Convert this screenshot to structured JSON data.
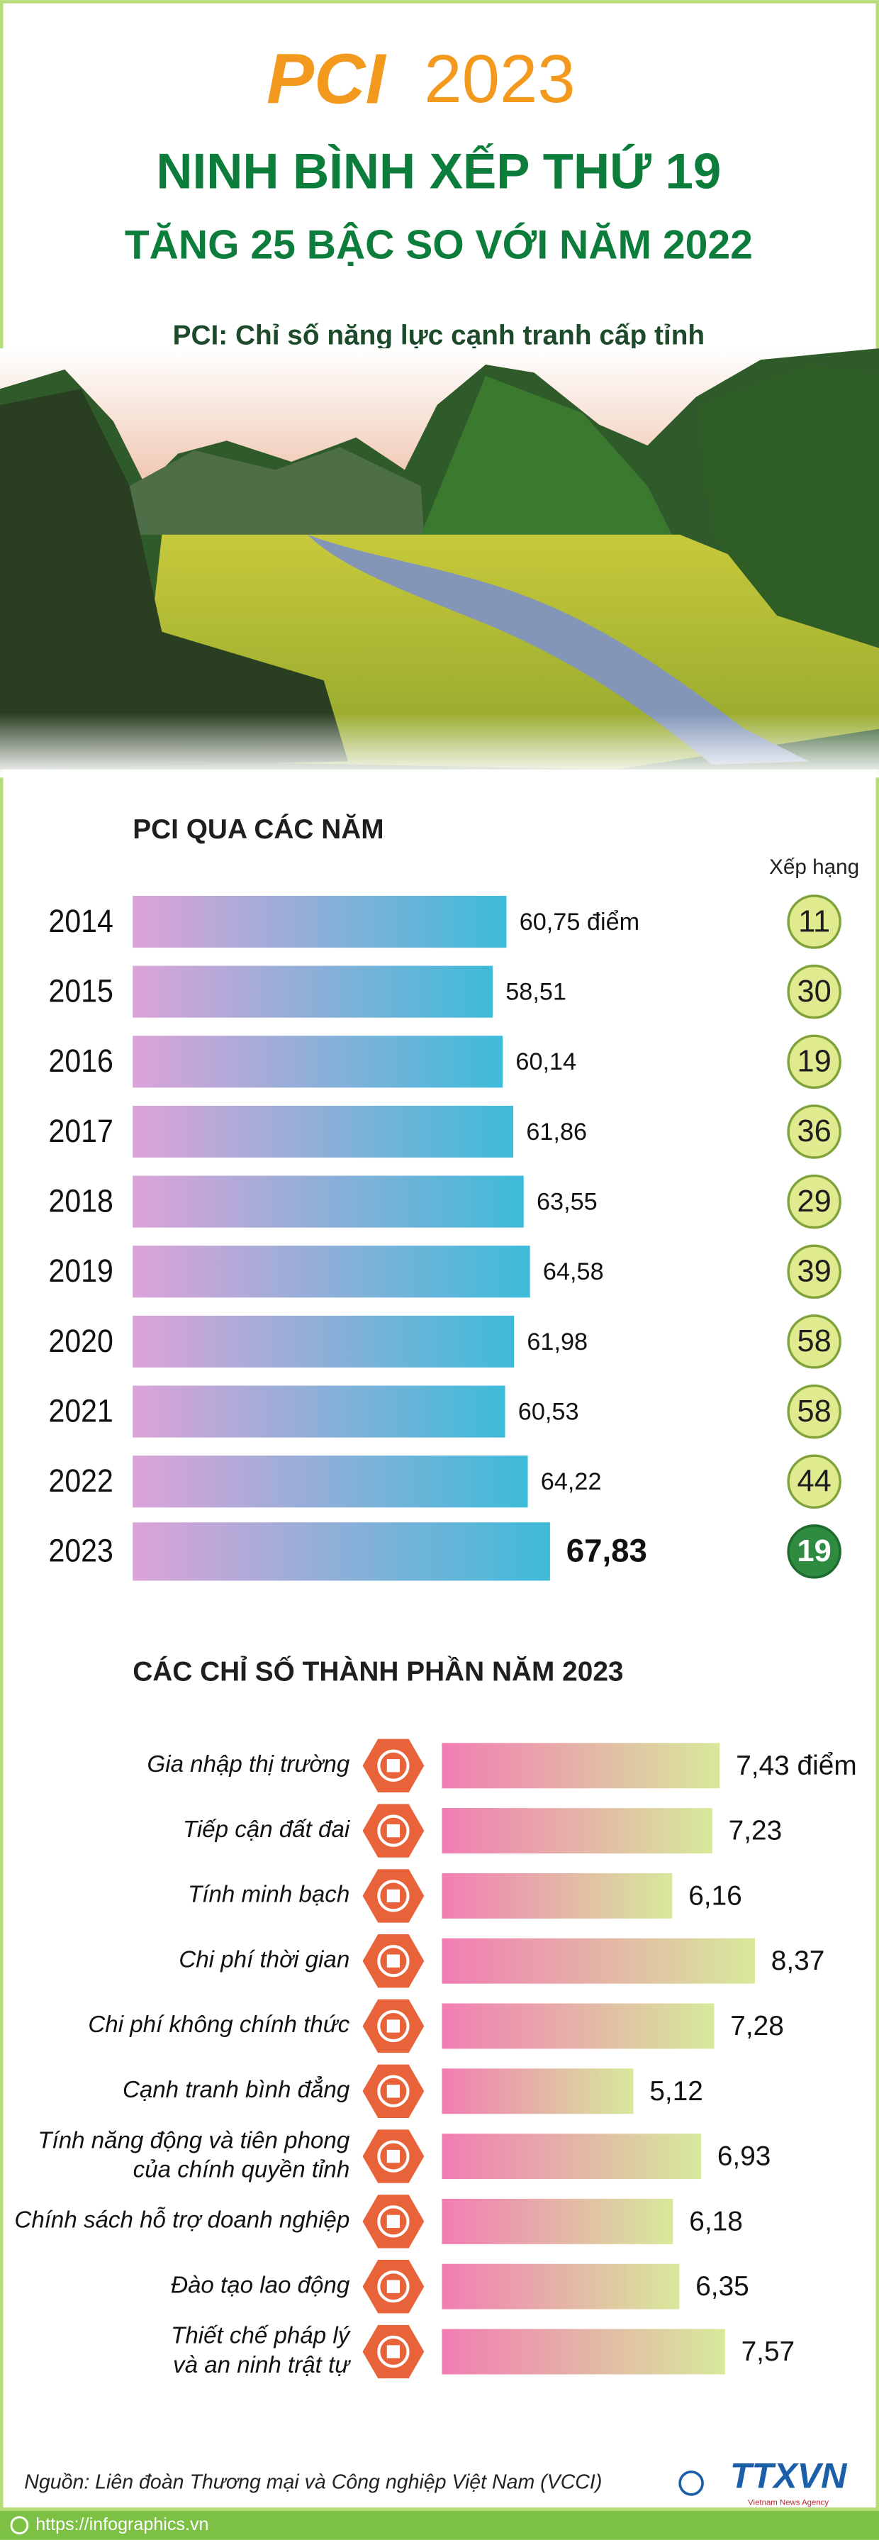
{
  "header": {
    "logo": "PCI",
    "year": "2023",
    "title": "NINH BÌNH XẾP THỨ 19",
    "subtitle": "TĂNG 25 BẬC SO VỚI NĂM 2022",
    "definition": "PCI: Chỉ số năng lực cạnh tranh cấp tỉnh"
  },
  "chart_data": [
    {
      "type": "bar",
      "title": "PCI QUA CÁC NĂM",
      "categories": [
        "2014",
        "2015",
        "2016",
        "2017",
        "2018",
        "2019",
        "2020",
        "2021",
        "2022",
        "2023"
      ],
      "values": [
        60.75,
        58.51,
        60.14,
        61.86,
        63.55,
        64.58,
        61.98,
        60.53,
        64.22,
        67.83
      ],
      "value_labels": [
        "60,75 điểm",
        "58,51",
        "60,14",
        "61,86",
        "63,55",
        "64,58",
        "61,98",
        "60,53",
        "64,22",
        "67,83"
      ],
      "colors": [
        "#dca3d8",
        "#3dbbd9"
      ],
      "xlim": [
        0,
        80
      ],
      "rank_title": "Xếp hạng",
      "ranks": [
        11,
        30,
        19,
        36,
        29,
        39,
        58,
        58,
        44,
        19
      ]
    },
    {
      "type": "bar",
      "title": "CÁC CHỈ SỐ THÀNH PHẦN NĂM 2023",
      "categories": [
        "Gia nhập thị trường",
        "Tiếp cận đất đai",
        "Tính minh bạch",
        "Chi phí thời gian",
        "Chi phí không chính thức",
        "Cạnh tranh bình đẳng",
        [
          "Tính năng động và tiên phong",
          "của chính quyền tỉnh"
        ],
        "Chính sách hỗ trợ doanh nghiệp",
        "Đào tạo lao động",
        [
          "Thiết chế pháp lý",
          "và an ninh trật tự"
        ]
      ],
      "values": [
        7.43,
        7.23,
        6.16,
        8.37,
        7.28,
        5.12,
        6.93,
        6.18,
        6.35,
        7.57
      ],
      "value_labels": [
        "7,43 điểm",
        "7,23",
        "6,16",
        "8,37",
        "7,28",
        "5,12",
        "6,93",
        "6,18",
        "6,35",
        "7,57"
      ],
      "colors": [
        "#f27db3",
        "#d7e99b"
      ],
      "xlim": [
        0,
        10
      ]
    }
  ],
  "footer": {
    "source": "Nguồn: Liên đoàn Thương mại và Công nghiệp Việt Nam (VCCI)",
    "website": "https://infographics.vn",
    "agency": "TTXVN",
    "agency_sub": "Vietnam News Agency"
  }
}
